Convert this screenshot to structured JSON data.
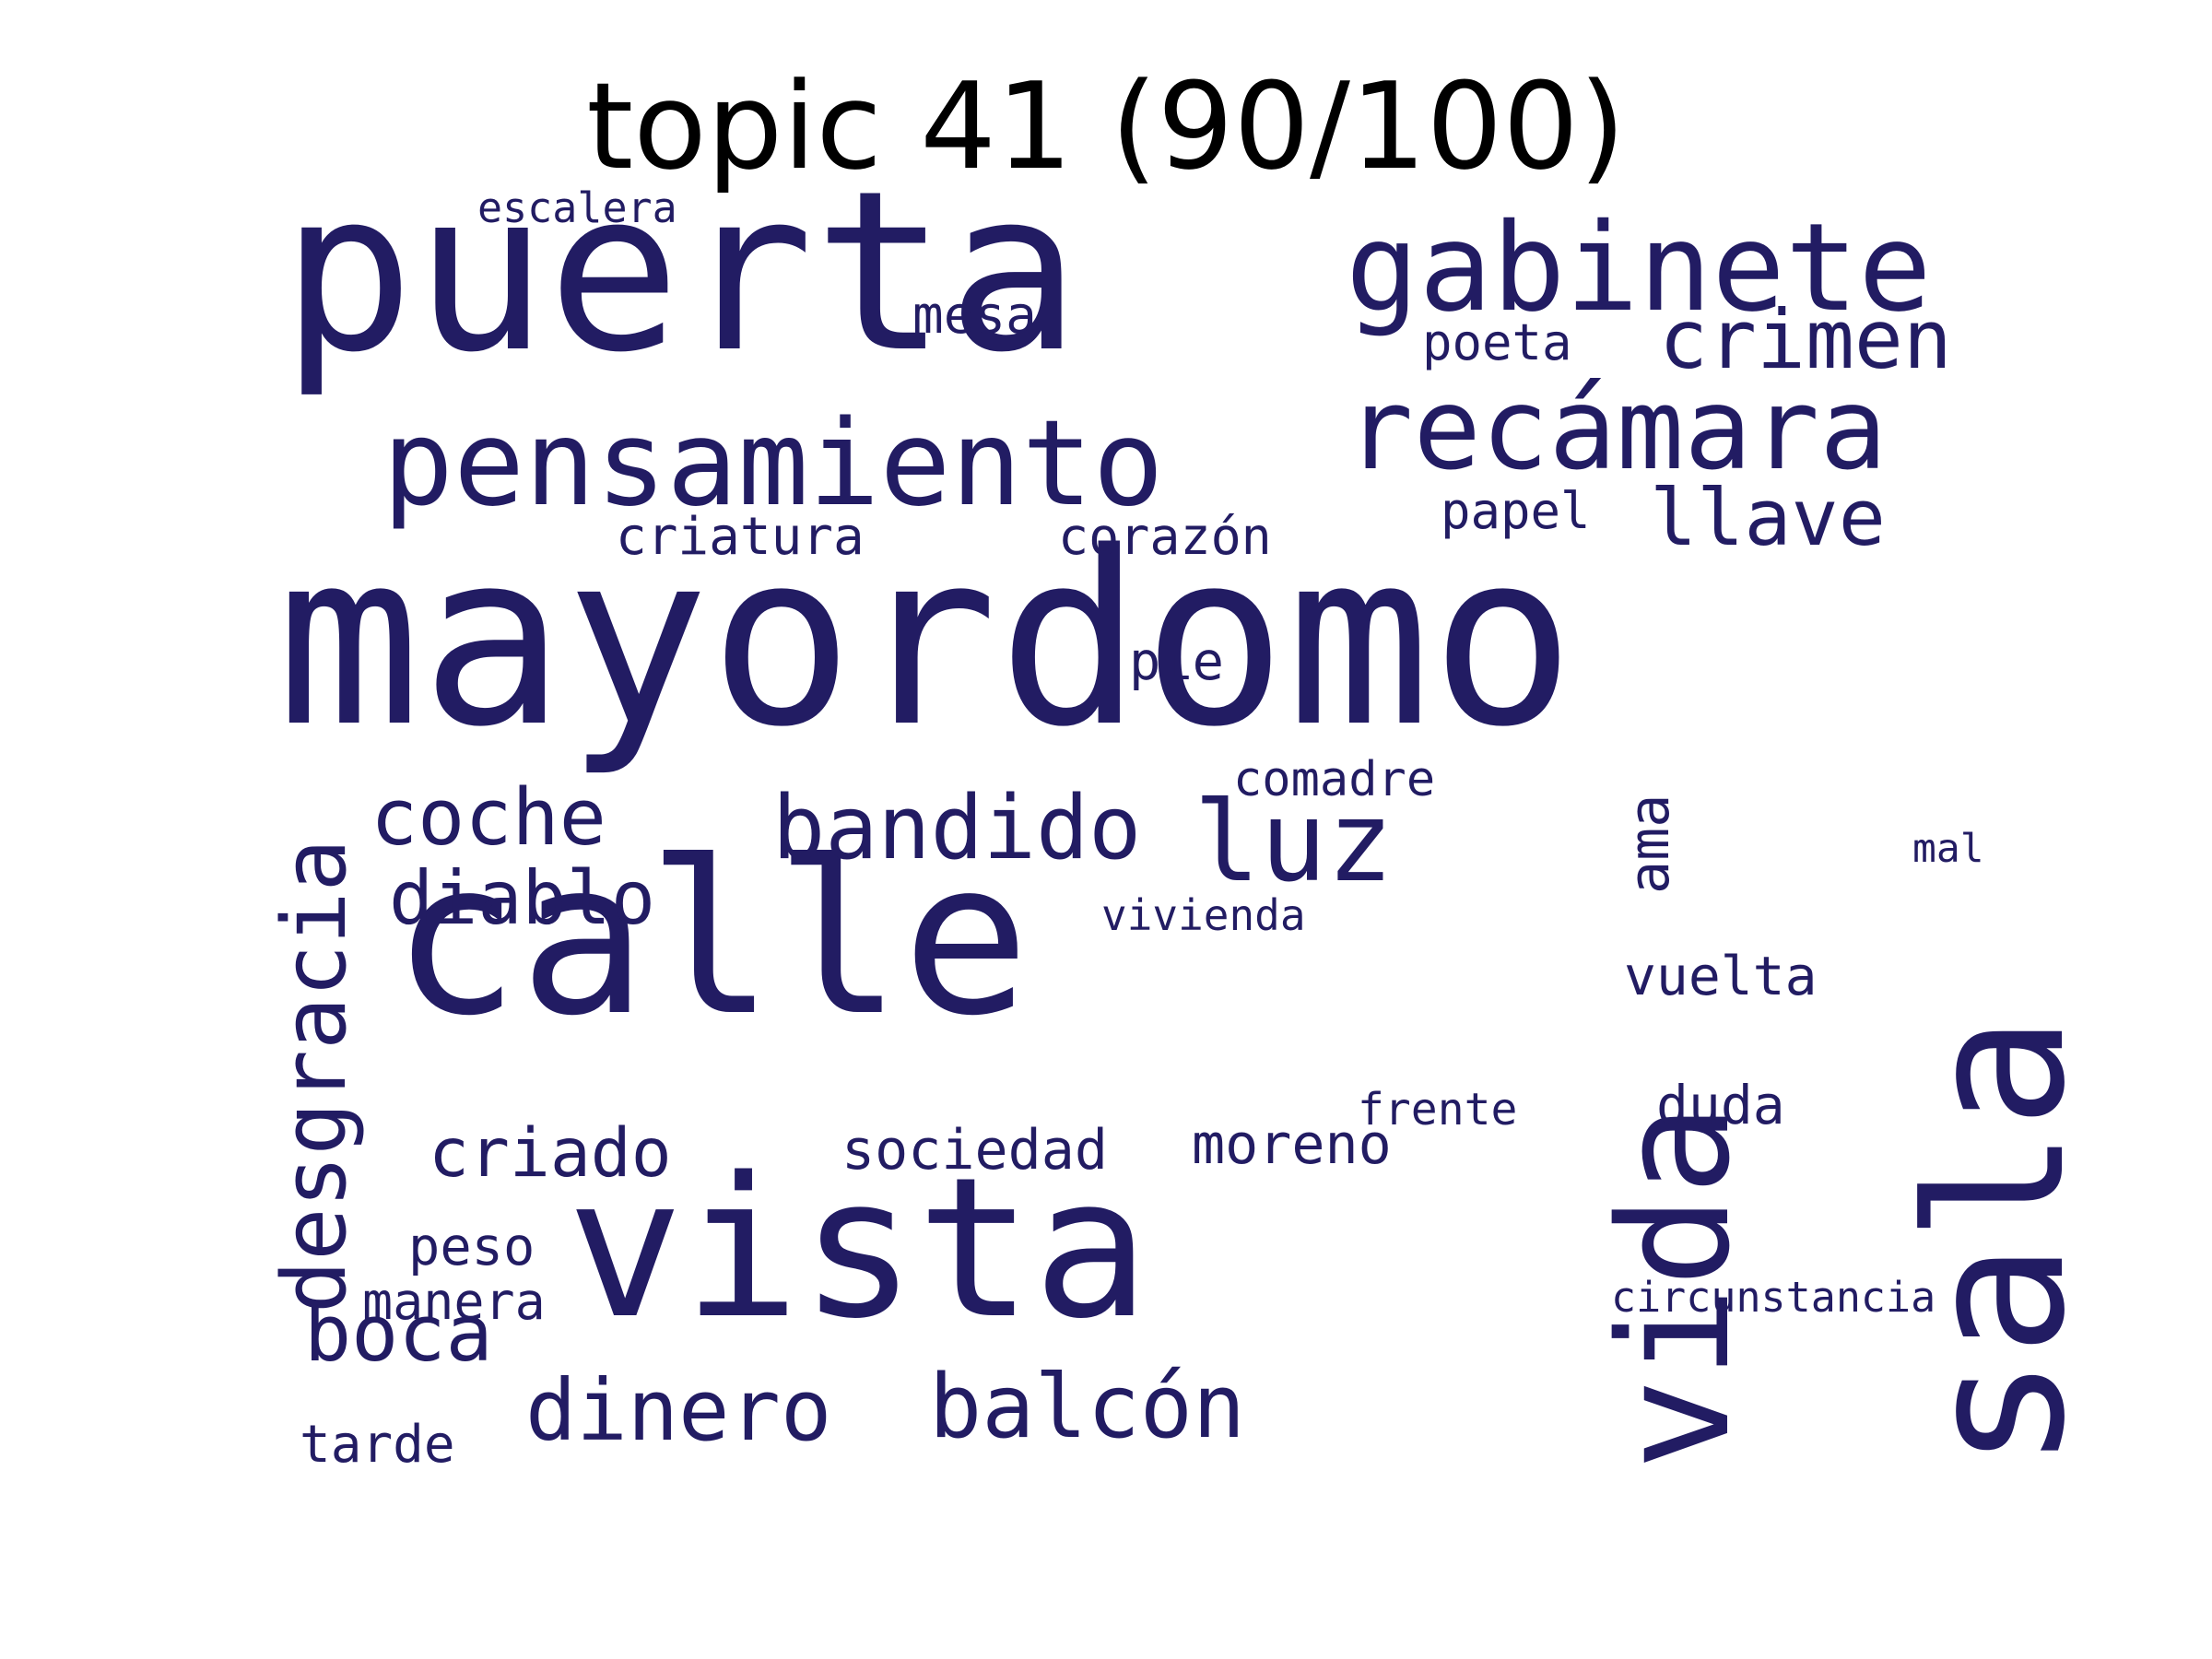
{
  "title": "topic 41 (90/100)",
  "word_color": "#221c63",
  "words": [
    {
      "text": "mayordomo",
      "weight": 100,
      "orientation": "horizontal"
    },
    {
      "text": "puerta",
      "weight": 96,
      "orientation": "horizontal"
    },
    {
      "text": "calle",
      "weight": 94,
      "orientation": "horizontal"
    },
    {
      "text": "vista",
      "weight": 84,
      "orientation": "horizontal"
    },
    {
      "text": "sala",
      "weight": 82,
      "orientation": "vertical"
    },
    {
      "text": "vida",
      "weight": 68,
      "orientation": "vertical"
    },
    {
      "text": "gabinete",
      "weight": 52,
      "orientation": "horizontal"
    },
    {
      "text": "pensamiento",
      "weight": 50,
      "orientation": "horizontal"
    },
    {
      "text": "recámara",
      "weight": 48,
      "orientation": "horizontal"
    },
    {
      "text": "desgracia",
      "weight": 40,
      "orientation": "vertical"
    },
    {
      "text": "luz",
      "weight": 40,
      "orientation": "horizontal"
    },
    {
      "text": "bandido",
      "weight": 36,
      "orientation": "horizontal"
    },
    {
      "text": "balcón",
      "weight": 36,
      "orientation": "horizontal"
    },
    {
      "text": "dinero",
      "weight": 34,
      "orientation": "horizontal"
    },
    {
      "text": "crimen",
      "weight": 34,
      "orientation": "horizontal"
    },
    {
      "text": "llave",
      "weight": 32,
      "orientation": "horizontal"
    },
    {
      "text": "coche",
      "weight": 32,
      "orientation": "horizontal"
    },
    {
      "text": "boca",
      "weight": 32,
      "orientation": "horizontal"
    },
    {
      "text": "diablo",
      "weight": 30,
      "orientation": "horizontal"
    },
    {
      "text": "criado",
      "weight": 28,
      "orientation": "horizontal"
    },
    {
      "text": "ama",
      "weight": 24,
      "orientation": "vertical"
    },
    {
      "text": "sociedad",
      "weight": 22,
      "orientation": "horizontal"
    },
    {
      "text": "moreno",
      "weight": 22,
      "orientation": "horizontal"
    },
    {
      "text": "vuelta",
      "weight": 22,
      "orientation": "horizontal"
    },
    {
      "text": "duda",
      "weight": 22,
      "orientation": "horizontal"
    },
    {
      "text": "mesa",
      "weight": 20,
      "orientation": "horizontal"
    },
    {
      "text": "criatura",
      "weight": 20,
      "orientation": "horizontal"
    },
    {
      "text": "poeta",
      "weight": 20,
      "orientation": "horizontal"
    },
    {
      "text": "papel",
      "weight": 20,
      "orientation": "horizontal"
    },
    {
      "text": "corazón",
      "weight": 20,
      "orientation": "horizontal"
    },
    {
      "text": "pie",
      "weight": 20,
      "orientation": "horizontal"
    },
    {
      "text": "peso",
      "weight": 20,
      "orientation": "horizontal"
    },
    {
      "text": "manera",
      "weight": 20,
      "orientation": "horizontal"
    },
    {
      "text": "tarde",
      "weight": 20,
      "orientation": "horizontal"
    },
    {
      "text": "comadre",
      "weight": 18,
      "orientation": "horizontal"
    },
    {
      "text": "frente",
      "weight": 16,
      "orientation": "horizontal"
    },
    {
      "text": "escalera",
      "weight": 15,
      "orientation": "horizontal"
    },
    {
      "text": "vivienda",
      "weight": 15,
      "orientation": "horizontal"
    },
    {
      "text": "circunstancia",
      "weight": 15,
      "orientation": "horizontal"
    },
    {
      "text": "mal",
      "weight": 14,
      "orientation": "horizontal"
    }
  ]
}
